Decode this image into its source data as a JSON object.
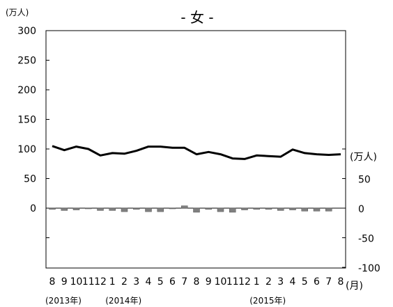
{
  "chart_data": {
    "type": "line+bar",
    "title": "- 女 -",
    "left_axis": {
      "unit": "(万人)",
      "ylim": [
        -100,
        300
      ],
      "ticks": [
        300,
        250,
        200,
        150,
        100,
        50,
        0
      ]
    },
    "right_axis": {
      "unit": "(万人)",
      "ylim": [
        -100,
        100
      ],
      "ticks": [
        50,
        0,
        -50,
        -100
      ]
    },
    "x_unit": "(月)",
    "categories": [
      "8",
      "9",
      "10",
      "11",
      "12",
      "1",
      "2",
      "3",
      "4",
      "5",
      "6",
      "7",
      "8",
      "9",
      "10",
      "11",
      "12",
      "1",
      "2",
      "3",
      "4",
      "5",
      "6",
      "7",
      "8"
    ],
    "year_labels": [
      {
        "text": "(2013年)",
        "at": 0
      },
      {
        "text": "(2014年)",
        "at": 5
      },
      {
        "text": "(2015年)",
        "at": 17
      }
    ],
    "series": [
      {
        "type": "line",
        "axis": "left",
        "color": "#000000",
        "values": [
          105,
          98,
          104,
          100,
          89,
          93,
          92,
          97,
          104,
          104,
          102,
          102,
          91,
          95,
          91,
          84,
          83,
          89,
          88,
          87,
          99,
          93,
          91,
          90,
          91
        ]
      },
      {
        "type": "bar",
        "axis": "right",
        "color": "#808080",
        "values": [
          -2,
          -4,
          -3,
          -1,
          -4,
          -4,
          -6,
          -2,
          -6,
          -6,
          -1,
          4,
          -7,
          -2,
          -6,
          -7,
          -3,
          -2,
          -2,
          -4,
          -3,
          -5,
          -5,
          -5,
          null
        ]
      }
    ]
  }
}
